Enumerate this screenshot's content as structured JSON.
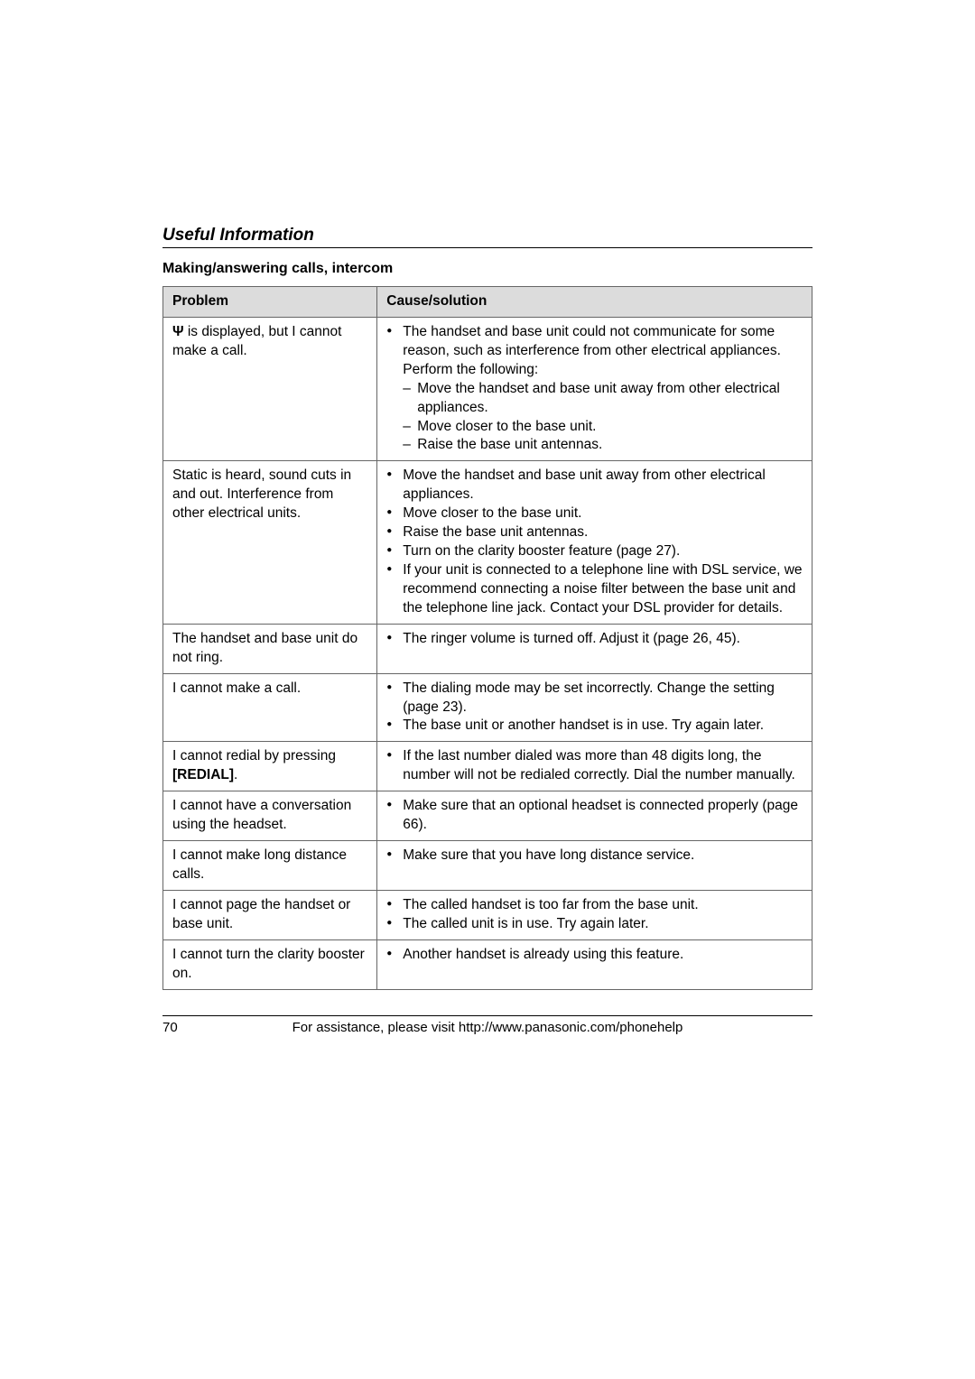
{
  "section_title": "Useful Information",
  "subheading": "Making/answering calls, intercom",
  "headers": {
    "problem": "Problem",
    "cause": "Cause/solution"
  },
  "rows": [
    {
      "problem_prefix_icon": "Ψ",
      "problem_text": " is displayed, but I cannot make a call.",
      "bullets": [
        {
          "text": "The handset and base unit could not communicate for some reason, such as interference from other electrical appliances. Perform the following:",
          "sub": [
            "Move the handset and base unit away from other electrical appliances.",
            "Move closer to the base unit.",
            "Raise the base unit antennas."
          ]
        }
      ]
    },
    {
      "problem_text": "Static is heard, sound cuts in and out. Interference from other electrical units.",
      "bullets": [
        {
          "text": "Move the handset and base unit away from other electrical appliances."
        },
        {
          "text": "Move closer to the base unit."
        },
        {
          "text": "Raise the base unit antennas."
        },
        {
          "text": "Turn on the clarity booster feature (page 27)."
        },
        {
          "text": "If your unit is connected to a telephone line with DSL service, we recommend connecting a noise filter between the base unit and the telephone line jack. Contact your DSL provider for details."
        }
      ]
    },
    {
      "problem_text": "The handset and base unit do not ring.",
      "bullets": [
        {
          "text": "The ringer volume is turned off. Adjust it (page 26, 45)."
        }
      ]
    },
    {
      "problem_text": "I cannot make a call.",
      "bullets": [
        {
          "text": "The dialing mode may be set incorrectly. Change the setting (page 23)."
        },
        {
          "text": "The base unit or another handset is in use. Try again later."
        }
      ]
    },
    {
      "problem_prefix": "I cannot redial by pressing ",
      "problem_key": "[REDIAL]",
      "problem_suffix": ".",
      "bullets": [
        {
          "text": "If the last number dialed was more than 48 digits long, the number will not be redialed correctly. Dial the number manually."
        }
      ]
    },
    {
      "problem_text": "I cannot have a conversation using the headset.",
      "bullets": [
        {
          "text": "Make sure that an optional headset is connected properly (page 66)."
        }
      ]
    },
    {
      "problem_text": "I cannot make long distance calls.",
      "bullets": [
        {
          "text": "Make sure that you have long distance service."
        }
      ]
    },
    {
      "problem_text": "I cannot page the handset or base unit.",
      "bullets": [
        {
          "text": "The called handset is too far from the base unit."
        },
        {
          "text": "The called unit is in use. Try again later."
        }
      ]
    },
    {
      "problem_text": "I cannot turn the clarity booster on.",
      "bullets": [
        {
          "text": "Another handset is already using this feature."
        }
      ]
    }
  ],
  "footer": {
    "page_number": "70",
    "assist_text": "For assistance, please visit http://www.panasonic.com/phonehelp"
  }
}
